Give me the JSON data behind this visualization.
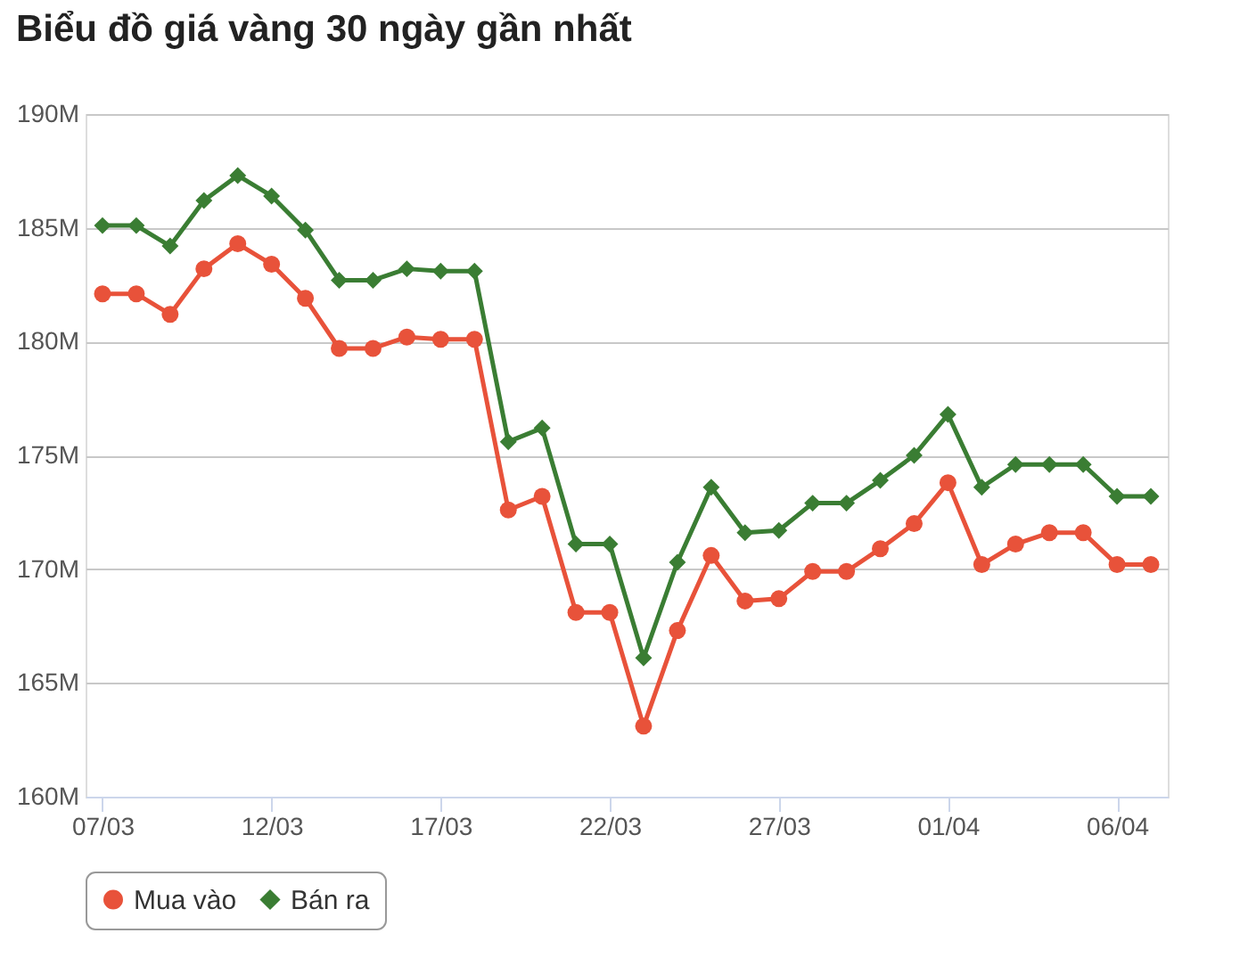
{
  "chart_data": {
    "type": "line",
    "title": "Biểu đồ giá vàng 30 ngày gần nhất",
    "categories": [
      "07/03",
      null,
      null,
      null,
      null,
      "12/03",
      null,
      null,
      null,
      null,
      "17/03",
      null,
      null,
      null,
      null,
      "22/03",
      null,
      null,
      null,
      null,
      "27/03",
      null,
      null,
      null,
      null,
      "01/04",
      null,
      null,
      null,
      null,
      "06/04",
      null
    ],
    "series": [
      {
        "name": "Mua vào",
        "color": "#e8523a",
        "marker": "circle",
        "values": [
          182.1,
          182.1,
          181.2,
          183.2,
          184.3,
          183.4,
          181.9,
          179.7,
          179.7,
          180.2,
          180.1,
          180.1,
          172.6,
          173.2,
          168.1,
          168.1,
          163.1,
          167.3,
          170.6,
          168.6,
          168.7,
          169.9,
          169.9,
          170.9,
          172.0,
          173.8,
          170.2,
          171.1,
          171.6,
          171.6,
          170.2,
          170.2
        ]
      },
      {
        "name": "Bán ra",
        "color": "#3a7d33",
        "marker": "diamond",
        "values": [
          185.1,
          185.1,
          184.2,
          186.2,
          187.3,
          186.4,
          184.9,
          182.7,
          182.7,
          183.2,
          183.1,
          183.1,
          175.6,
          176.2,
          171.1,
          171.1,
          166.1,
          170.3,
          173.6,
          171.6,
          171.7,
          172.9,
          172.9,
          173.9,
          175.0,
          176.8,
          173.6,
          174.6,
          174.6,
          174.6,
          173.2,
          173.2
        ]
      }
    ],
    "ylim": [
      160,
      190
    ],
    "yticks": [
      {
        "value": 160,
        "label": "160M"
      },
      {
        "value": 165,
        "label": "165M"
      },
      {
        "value": 170,
        "label": "170M"
      },
      {
        "value": 175,
        "label": "175M"
      },
      {
        "value": 180,
        "label": "180M"
      },
      {
        "value": 185,
        "label": "185M"
      },
      {
        "value": 190,
        "label": "190M"
      }
    ],
    "grid": "y",
    "legend": "bottom",
    "line_style": "solid"
  }
}
